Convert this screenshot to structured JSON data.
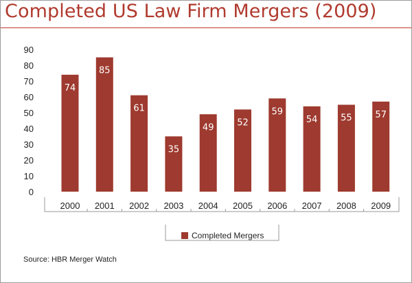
{
  "title": "Completed US Law Firm Mergers (2009)",
  "source": "Source: HBR Merger Watch",
  "colors": {
    "bar": "#9e3a2f",
    "title": "#b03a2e",
    "axis": "#9a9a9a",
    "text": "#222222"
  },
  "chart_data": {
    "type": "bar",
    "categories": [
      "2000",
      "2001",
      "2002",
      "2003",
      "2004",
      "2005",
      "2006",
      "2007",
      "2008",
      "2009"
    ],
    "series": [
      {
        "name": "Completed Mergers",
        "values": [
          74,
          85,
          61,
          35,
          49,
          52,
          59,
          54,
          55,
          57
        ]
      }
    ],
    "data_labels": [
      "74",
      "85",
      "61",
      "35",
      "49",
      "52",
      "59",
      "54",
      "55",
      "57"
    ],
    "yticks": [
      "0",
      "10",
      "20",
      "30",
      "40",
      "50",
      "60",
      "70",
      "80",
      "90"
    ],
    "ylim": [
      0,
      90
    ],
    "grid": false,
    "legend": "bottom-center"
  }
}
